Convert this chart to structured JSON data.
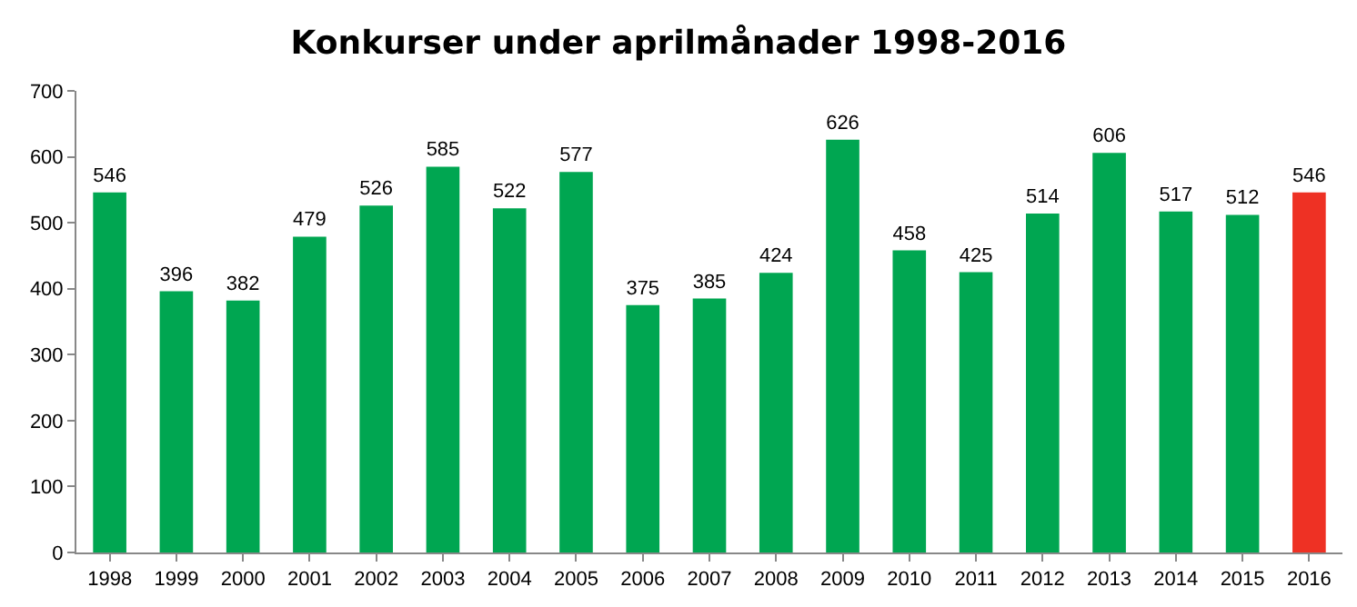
{
  "chart_data": {
    "type": "bar",
    "title": "Konkurser under aprilmånader 1998-2016",
    "categories": [
      "1998",
      "1999",
      "2000",
      "2001",
      "2002",
      "2003",
      "2004",
      "2005",
      "2006",
      "2007",
      "2008",
      "2009",
      "2010",
      "2011",
      "2012",
      "2013",
      "2014",
      "2015",
      "2016"
    ],
    "values": [
      546,
      396,
      382,
      479,
      526,
      585,
      522,
      577,
      375,
      385,
      424,
      626,
      458,
      425,
      514,
      606,
      517,
      512,
      546
    ],
    "colors": [
      "#00a651",
      "#00a651",
      "#00a651",
      "#00a651",
      "#00a651",
      "#00a651",
      "#00a651",
      "#00a651",
      "#00a651",
      "#00a651",
      "#00a651",
      "#00a651",
      "#00a651",
      "#00a651",
      "#00a651",
      "#00a651",
      "#00a651",
      "#00a651",
      "#ee3124"
    ],
    "ylim": [
      0,
      700
    ],
    "yticks": [
      0,
      100,
      200,
      300,
      400,
      500,
      600,
      700
    ],
    "data_labels": true,
    "grid": false
  }
}
